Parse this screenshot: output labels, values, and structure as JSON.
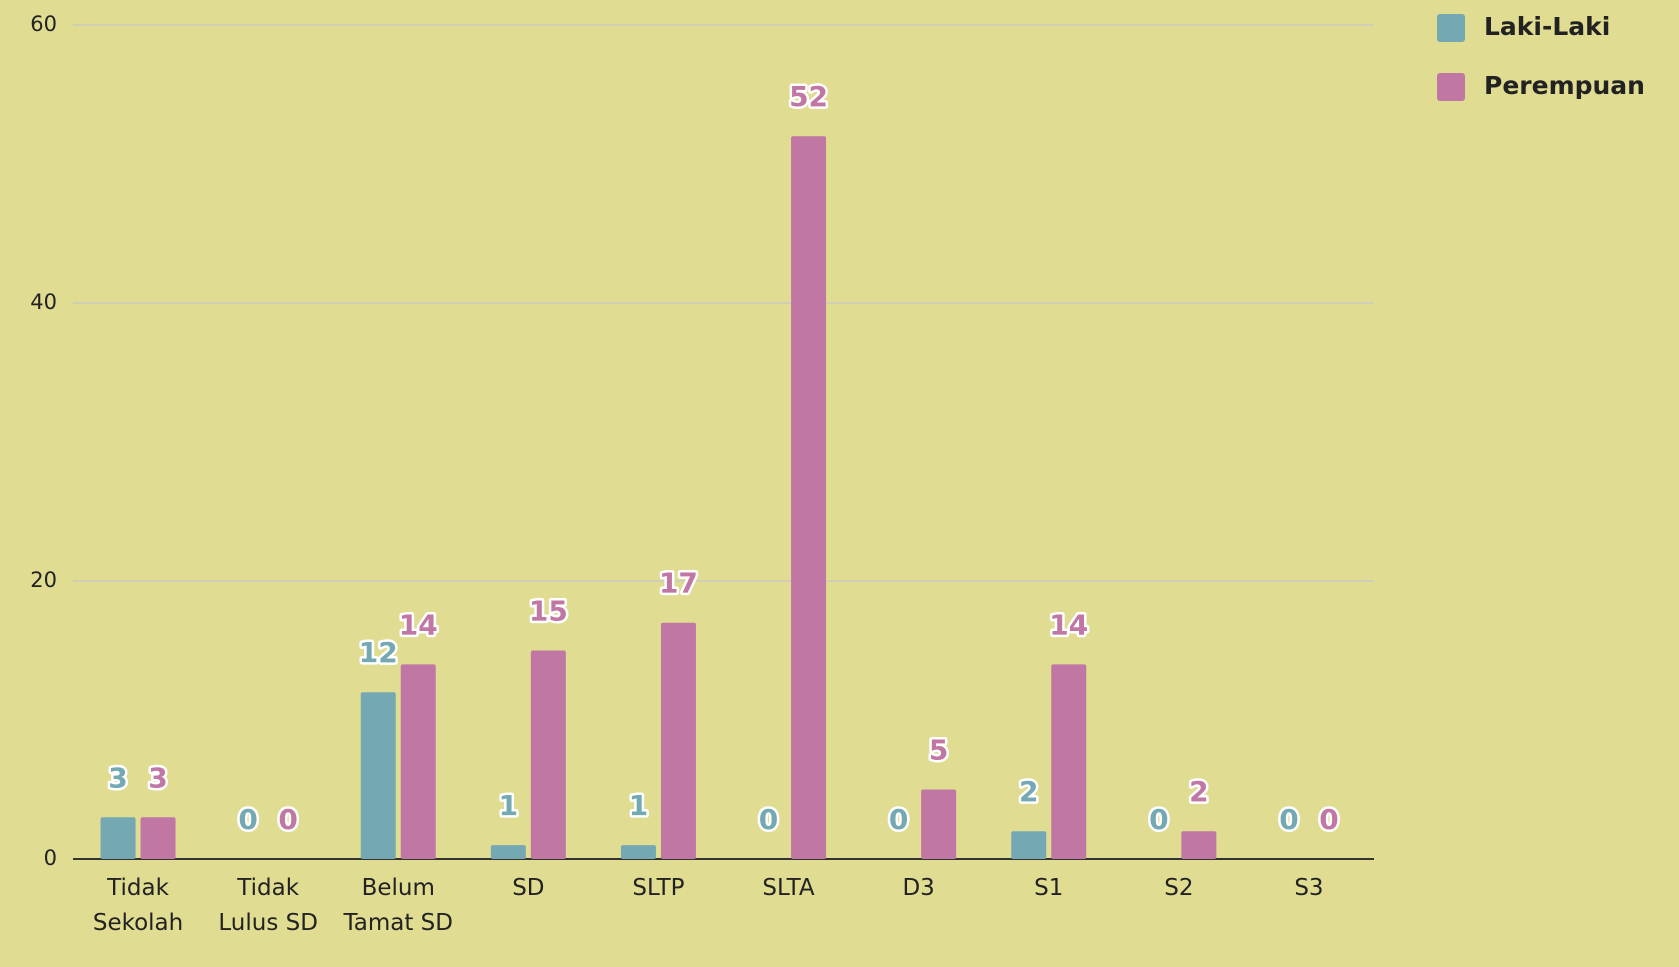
{
  "chart_data": {
    "type": "bar",
    "categories": [
      "Tidak Sekolah",
      "Tidak Lulus SD",
      "Belum Tamat SD",
      "SD",
      "SLTP",
      "SLTA",
      "D3",
      "S1",
      "S2",
      "S3"
    ],
    "series": [
      {
        "name": "Laki-Laki",
        "color": "#74a9b4",
        "values": [
          3,
          0,
          12,
          1,
          1,
          0,
          0,
          2,
          0,
          0
        ]
      },
      {
        "name": "Perempuan",
        "color": "#c077a3",
        "values": [
          3,
          0,
          14,
          15,
          17,
          52,
          5,
          14,
          2,
          0
        ]
      }
    ],
    "ylim": [
      0,
      60
    ],
    "yticks": [
      0,
      20,
      40,
      60
    ],
    "grid": true,
    "legend": "top-right"
  }
}
